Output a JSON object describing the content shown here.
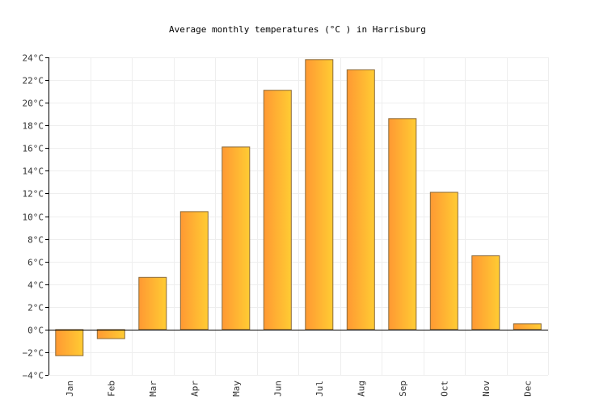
{
  "chart_data": {
    "type": "bar",
    "title": "Average monthly temperatures (°C ) in Harrisburg",
    "xlabel": "",
    "ylabel": "",
    "categories": [
      "Jan",
      "Feb",
      "Mar",
      "Apr",
      "May",
      "Jun",
      "Jul",
      "Aug",
      "Sep",
      "Oct",
      "Nov",
      "Dec"
    ],
    "values": [
      -2.3,
      -0.8,
      4.6,
      10.4,
      16.1,
      21.1,
      23.8,
      22.9,
      18.6,
      12.1,
      6.5,
      0.5
    ],
    "ylim": [
      -4,
      24
    ],
    "yticks": [
      -4,
      -2,
      0,
      2,
      4,
      6,
      8,
      10,
      12,
      14,
      16,
      18,
      20,
      22,
      24
    ],
    "ytick_labels": [
      "−4°C",
      "−2°C",
      "0°C",
      "2°C",
      "4°C",
      "6°C",
      "8°C",
      "10°C",
      "12°C",
      "14°C",
      "16°C",
      "18°C",
      "20°C",
      "22°C",
      "24°C"
    ],
    "grid": true,
    "legend": "none",
    "colors": {
      "bar_start": "#ff9933",
      "bar_end": "#ffcc33",
      "bar_stroke": "#8a6a3a",
      "grid": "#eeeeee",
      "axis": "#000000"
    }
  }
}
